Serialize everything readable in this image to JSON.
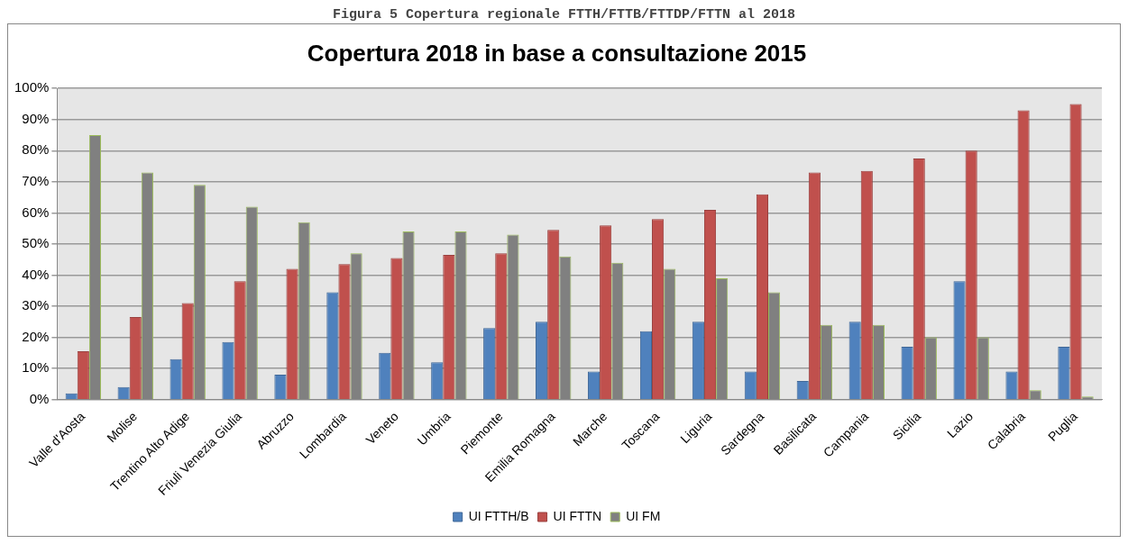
{
  "chart_data": {
    "type": "bar",
    "title": "Copertura 2018 in base a consultazione 2015",
    "annotations": [
      "Figura 5 Copertura regionale FTTH/FTTB/FTTDP/FTTN al 2018"
    ],
    "categories": [
      "Valle d'Aosta",
      "Molise",
      "Trentino Alto Adige",
      "Friuli Venezia Giulia",
      "Abruzzo",
      "Lombardia",
      "Veneto",
      "Umbria",
      "Piemonte",
      "Emilia Romagna",
      "Marche",
      "Toscana",
      "Liguria",
      "Sardegna",
      "Basilicata",
      "Campania",
      "Sicilia",
      "Lazio",
      "Calabria",
      "Puglia"
    ],
    "series": [
      {
        "name": "UI FTTH/B",
        "color": "#4f81bd",
        "values": [
          2,
          4,
          13,
          18.5,
          8,
          34.5,
          15,
          12,
          23,
          25,
          9,
          22,
          25,
          9,
          6,
          25,
          17,
          38,
          9,
          17
        ]
      },
      {
        "name": "UI FTTN",
        "color": "#c0504d",
        "values": [
          15.5,
          26.5,
          31,
          38,
          42,
          43.5,
          45.5,
          46.5,
          47,
          54.5,
          56,
          58,
          61,
          66,
          73,
          73.5,
          77.5,
          80,
          93,
          95
        ]
      },
      {
        "name": "UI FM",
        "color": "#808080",
        "values": [
          85,
          73,
          69,
          62,
          57,
          47,
          54,
          54,
          53,
          46,
          44,
          42,
          39,
          34.5,
          24,
          24,
          20,
          20,
          3,
          1
        ]
      }
    ],
    "ylim": [
      0,
      100
    ],
    "yticks": [
      {
        "value": 0,
        "label": "0%"
      },
      {
        "value": 10,
        "label": "10%"
      },
      {
        "value": 20,
        "label": "20%"
      },
      {
        "value": 30,
        "label": "30%"
      },
      {
        "value": 40,
        "label": "40%"
      },
      {
        "value": 50,
        "label": "50%"
      },
      {
        "value": 60,
        "label": "60%"
      },
      {
        "value": 70,
        "label": "70%"
      },
      {
        "value": 80,
        "label": "80%"
      },
      {
        "value": 90,
        "label": "90%"
      },
      {
        "value": 100,
        "label": "100%"
      }
    ],
    "grid": "y",
    "legend": "bottom"
  }
}
